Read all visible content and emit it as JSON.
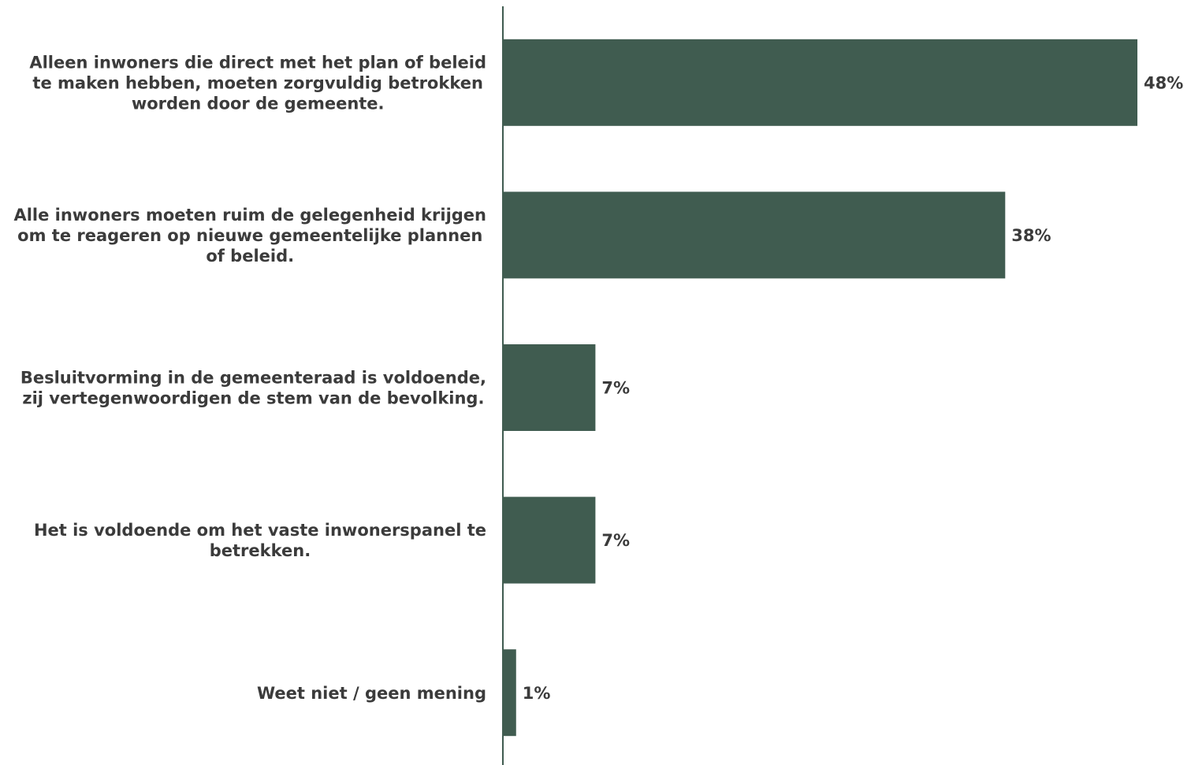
{
  "chart_data": {
    "type": "bar",
    "orientation": "horizontal",
    "title": "",
    "xlabel": "",
    "ylabel": "",
    "grid": false,
    "legend": "none",
    "xlim": [
      0,
      48
    ],
    "bar_color": "#405c50",
    "axis_color": "#405c50",
    "text_color": "#3b3b3b",
    "categories": [
      "Alleen inwoners die direct met het plan of beleid te maken hebben, moeten zorgvuldig betrokken worden door de gemeente.",
      "Alle inwoners moeten ruim de gelegenheid krijgen om te reageren op nieuwe gemeentelijke plannen of beleid.",
      "Besluitvorming in de gemeenteraad is voldoende, zij vertegenwoordigen de stem van de bevolking.",
      "Het is voldoende om het vaste inwonerspanel te betrekken.",
      "Weet niet / geen mening"
    ],
    "category_lines": [
      [
        "Alleen inwoners die direct met het plan of beleid",
        "te maken hebben, moeten zorgvuldig betrokken",
        "worden door de gemeente."
      ],
      [
        "Alle inwoners moeten ruim de gelegenheid krijgen",
        "om te reageren op nieuwe gemeentelijke plannen",
        "of beleid."
      ],
      [
        "Besluitvorming in de gemeenteraad is voldoende,",
        "zij vertegenwoordigen de stem van de bevolking."
      ],
      [
        "Het is voldoende om het vaste inwonerspanel te",
        "betrekken."
      ],
      [
        "Weet niet / geen mening"
      ]
    ],
    "values": [
      48,
      38,
      7,
      7,
      1
    ],
    "value_labels": [
      "48%",
      "38%",
      "7%",
      "7%",
      "1%"
    ]
  }
}
